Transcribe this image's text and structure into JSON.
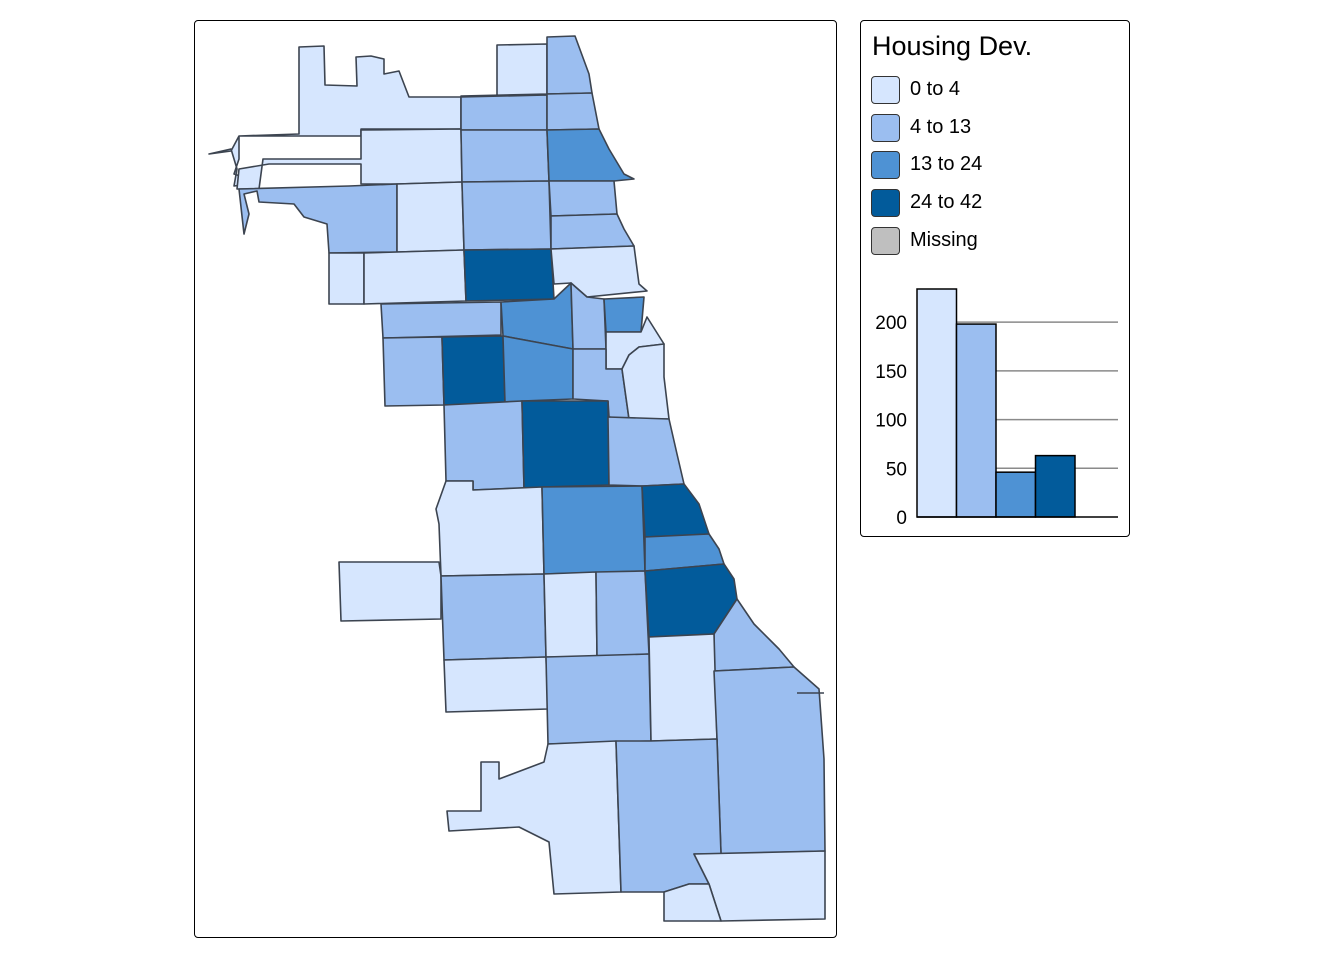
{
  "legend": {
    "title": "Housing Dev.",
    "items": [
      {
        "label": "0 to 4",
        "color": "#d6e6fe"
      },
      {
        "label": "4 to 13",
        "color": "#9bbef0"
      },
      {
        "label": "13 to 24",
        "color": "#4e92d4"
      },
      {
        "label": "24 to 42",
        "color": "#025b9b"
      },
      {
        "label": "Missing",
        "color": "#bfbfbf"
      }
    ]
  },
  "chart_data": {
    "type": "bar",
    "title": "",
    "xlabel": "",
    "ylabel": "",
    "categories": [
      "0 to 4",
      "4 to 13",
      "13 to 24",
      "24 to 42"
    ],
    "values": [
      234,
      198,
      46,
      63
    ],
    "colors": [
      "#d6e6fe",
      "#9bbef0",
      "#4e92d4",
      "#025b9b"
    ],
    "ylim": [
      0,
      234
    ],
    "yticks": [
      0,
      50,
      100,
      150,
      200
    ],
    "grid": true
  }
}
